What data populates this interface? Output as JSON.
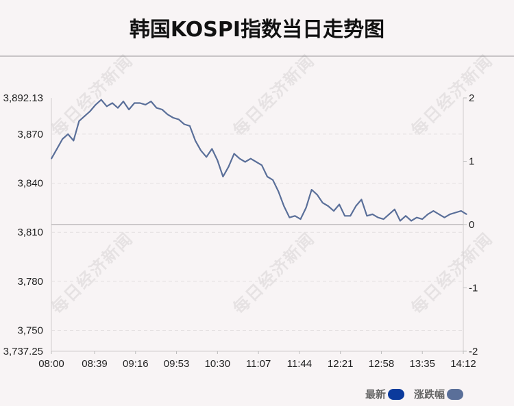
{
  "title": "韩国KOSPI指数当日走势图",
  "watermark": "每日经济新闻",
  "legend": [
    {
      "label": "最新",
      "color": "#0b3a9c"
    },
    {
      "label": "涨跌幅",
      "color": "#5a6f99"
    }
  ],
  "chart_data": {
    "type": "line",
    "title": "韩国KOSPI指数当日走势图",
    "x_tick_labels": [
      "08:00",
      "08:39",
      "09:16",
      "09:53",
      "10:30",
      "11:07",
      "11:44",
      "12:21",
      "12:58",
      "13:35",
      "14:12"
    ],
    "y_left_tick_labels": [
      "3,892.13",
      "3,870",
      "3,840",
      "3,810",
      "3,780",
      "3,750",
      "3,737.25"
    ],
    "y_left_ticks": [
      3892.13,
      3870,
      3840,
      3810,
      3780,
      3750,
      3737.25
    ],
    "y_right_tick_labels": [
      "2",
      "1",
      "0",
      "-1",
      "-2"
    ],
    "y_right_ticks": [
      2,
      1,
      0,
      -1,
      -2
    ],
    "ylim": [
      3737.25,
      3892.13
    ],
    "ylim_right": [
      -2,
      2
    ],
    "baseline": 3814.69,
    "grid": true,
    "legend_position": "bottom-right",
    "series": [
      {
        "name": "最新",
        "color": "#5a6f99",
        "x": [
          "08:00",
          "08:05",
          "08:10",
          "08:15",
          "08:20",
          "08:25",
          "08:30",
          "08:35",
          "08:40",
          "08:45",
          "08:50",
          "08:55",
          "09:00",
          "09:05",
          "09:10",
          "09:15",
          "09:20",
          "09:25",
          "09:30",
          "09:35",
          "09:40",
          "09:45",
          "09:50",
          "09:55",
          "10:00",
          "10:05",
          "10:10",
          "10:15",
          "10:20",
          "10:25",
          "10:30",
          "10:35",
          "10:40",
          "10:45",
          "10:50",
          "10:55",
          "11:00",
          "11:05",
          "11:10",
          "11:15",
          "11:20",
          "11:25",
          "11:30",
          "11:35",
          "11:40",
          "11:45",
          "11:50",
          "11:55",
          "12:00",
          "12:05",
          "12:10",
          "12:15",
          "12:20",
          "12:25",
          "12:30",
          "12:35",
          "12:40",
          "12:45",
          "12:50",
          "12:55",
          "13:00",
          "13:05",
          "13:10",
          "13:15",
          "13:20",
          "13:25",
          "13:30",
          "13:35",
          "13:40",
          "13:45",
          "13:50",
          "13:55",
          "14:00",
          "14:05",
          "14:10",
          "14:15"
        ],
        "values": [
          3855,
          3861,
          3867,
          3870,
          3866,
          3878,
          3881,
          3884,
          3888,
          3891,
          3887,
          3889,
          3886,
          3890,
          3885,
          3889,
          3889,
          3888,
          3890,
          3886,
          3885,
          3882,
          3880,
          3879,
          3876,
          3875,
          3866,
          3860,
          3856,
          3861,
          3854,
          3844,
          3850,
          3858,
          3855,
          3853,
          3855,
          3853,
          3851,
          3844,
          3842,
          3835,
          3826,
          3819,
          3820,
          3818,
          3825,
          3836,
          3833,
          3828,
          3826,
          3823,
          3827,
          3820,
          3820,
          3826,
          3830,
          3820,
          3821,
          3819,
          3818,
          3821,
          3824,
          3817,
          3820,
          3817,
          3819,
          3818,
          3821,
          3823,
          3821,
          3819,
          3821,
          3822,
          3823,
          3821
        ]
      }
    ]
  }
}
